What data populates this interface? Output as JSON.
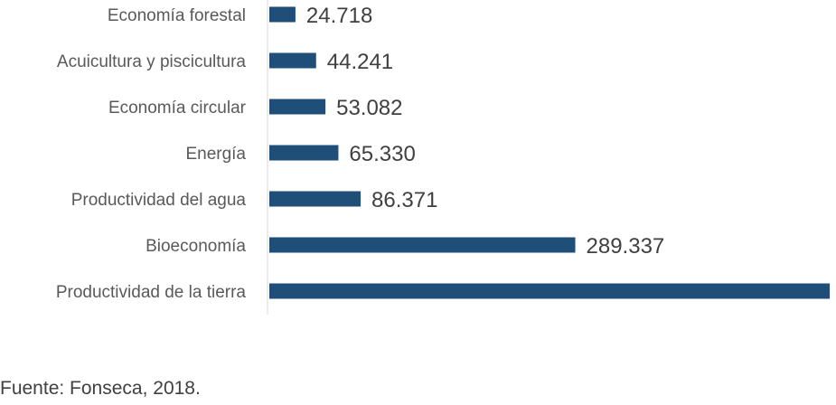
{
  "chart_data": {
    "type": "bar",
    "orientation": "horizontal",
    "categories": [
      "Economía forestal",
      "Acuicultura y piscicultura",
      "Economía circular",
      "Energía",
      "Productividad del agua",
      "Bioeconomía",
      "Productividad de la tierra"
    ],
    "values": [
      24718,
      44241,
      53082,
      65330,
      86371,
      289337,
      530000
    ],
    "value_labels": [
      "24.718",
      "44.241",
      "53.082",
      "65.330",
      "86.371",
      "289.337",
      ""
    ],
    "bar_color": "#1f4e79",
    "grid": false,
    "legend": "none"
  },
  "source": "Fuente: Fonseca, 2018."
}
